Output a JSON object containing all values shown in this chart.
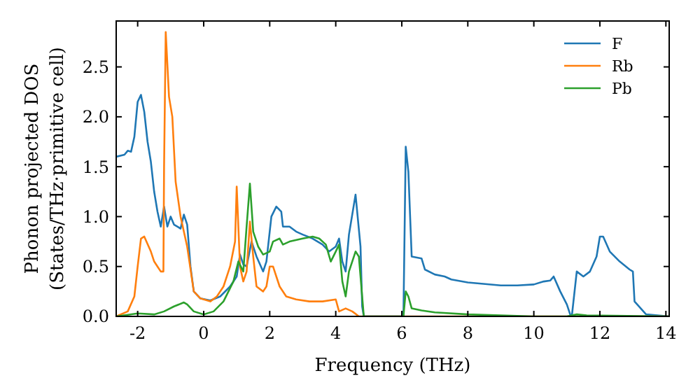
{
  "chart_data": {
    "type": "line",
    "xlabel": "Frequency (THz)",
    "ylabel": "Phonon projected DOS\n(States/THz·primitive cell)",
    "xlim": [
      -2.65,
      14.1
    ],
    "ylim": [
      0,
      2.96
    ],
    "xticks": [
      -2,
      0,
      2,
      4,
      6,
      8,
      10,
      12,
      14
    ],
    "yticks": [
      {
        "value": 0,
        "label": "0.0"
      },
      {
        "value": 0.5,
        "label": "0.5"
      },
      {
        "value": 1,
        "label": "1.0"
      },
      {
        "value": 1.5,
        "label": "1.5"
      },
      {
        "value": 2,
        "label": "2.0"
      },
      {
        "value": 2.5,
        "label": "2.5"
      }
    ],
    "grid": false,
    "legend": "top right",
    "marker": "none",
    "line_style": "solid",
    "series": [
      {
        "name": "F",
        "color": "#1f77b4",
        "x": [
          -2.65,
          -2.4,
          -2.3,
          -2.2,
          -2.1,
          -2.0,
          -1.9,
          -1.8,
          -1.7,
          -1.6,
          -1.5,
          -1.4,
          -1.3,
          -1.2,
          -1.1,
          -1.0,
          -0.9,
          -0.7,
          -0.6,
          -0.5,
          -0.4,
          -0.3,
          -0.1,
          0.2,
          0.5,
          0.8,
          1.0,
          1.1,
          1.2,
          1.3,
          1.45,
          1.6,
          1.8,
          1.9,
          2.05,
          2.2,
          2.35,
          2.4,
          2.6,
          2.8,
          3.0,
          3.3,
          3.6,
          3.8,
          4.0,
          4.1,
          4.2,
          4.3,
          4.4,
          4.6,
          4.75,
          4.8,
          4.85,
          6.05,
          6.12,
          6.2,
          6.3,
          6.6,
          6.7,
          7.0,
          7.3,
          7.5,
          8.0,
          9.0,
          9.5,
          10.0,
          10.3,
          10.5,
          10.6,
          10.8,
          11.0,
          11.1,
          11.15,
          11.3,
          11.5,
          11.7,
          11.9,
          12.0,
          12.1,
          12.3,
          12.6,
          12.9,
          13.0,
          13.05,
          13.4,
          14.1
        ],
        "values": [
          1.6,
          1.62,
          1.66,
          1.65,
          1.8,
          2.15,
          2.22,
          2.05,
          1.75,
          1.55,
          1.25,
          1.05,
          0.9,
          1.1,
          0.9,
          1.0,
          0.92,
          0.88,
          1.02,
          0.92,
          0.5,
          0.25,
          0.18,
          0.16,
          0.2,
          0.3,
          0.4,
          0.62,
          0.52,
          0.5,
          0.75,
          0.6,
          0.45,
          0.55,
          1.0,
          1.1,
          1.05,
          0.9,
          0.9,
          0.85,
          0.82,
          0.78,
          0.72,
          0.65,
          0.7,
          0.78,
          0.55,
          0.45,
          0.82,
          1.22,
          0.7,
          0.1,
          0,
          0,
          1.7,
          1.45,
          0.6,
          0.58,
          0.47,
          0.42,
          0.4,
          0.37,
          0.34,
          0.31,
          0.31,
          0.32,
          0.35,
          0.36,
          0.4,
          0.25,
          0.12,
          0.02,
          0,
          0.45,
          0.4,
          0.45,
          0.6,
          0.8,
          0.8,
          0.65,
          0.55,
          0.47,
          0.45,
          0.15,
          0.02,
          0
        ]
      },
      {
        "name": "Rb",
        "color": "#ff7f0e",
        "x": [
          -2.65,
          -2.3,
          -2.1,
          -2.0,
          -1.9,
          -1.8,
          -1.6,
          -1.5,
          -1.4,
          -1.3,
          -1.22,
          -1.2,
          -1.15,
          -1.05,
          -0.95,
          -0.85,
          -0.7,
          -0.5,
          -0.3,
          -0.1,
          0.2,
          0.4,
          0.6,
          0.8,
          0.95,
          1.0,
          1.1,
          1.2,
          1.3,
          1.4,
          1.5,
          1.6,
          1.8,
          1.9,
          2.0,
          2.1,
          2.2,
          2.3,
          2.5,
          2.8,
          3.2,
          3.6,
          4.0,
          4.1,
          4.3,
          4.5,
          4.7,
          14.1
        ],
        "values": [
          0,
          0.05,
          0.2,
          0.5,
          0.78,
          0.8,
          0.65,
          0.55,
          0.5,
          0.45,
          0.45,
          1.5,
          2.85,
          2.2,
          2.0,
          1.35,
          1.0,
          0.7,
          0.25,
          0.18,
          0.15,
          0.2,
          0.3,
          0.5,
          0.75,
          1.3,
          0.5,
          0.35,
          0.45,
          0.95,
          0.6,
          0.3,
          0.25,
          0.3,
          0.5,
          0.5,
          0.4,
          0.3,
          0.2,
          0.17,
          0.15,
          0.15,
          0.17,
          0.05,
          0.08,
          0.05,
          0,
          0
        ]
      },
      {
        "name": "Pb",
        "color": "#2ca02c",
        "x": [
          -2.65,
          -2.0,
          -1.5,
          -1.2,
          -0.9,
          -0.6,
          -0.5,
          -0.3,
          0,
          0.3,
          0.6,
          0.9,
          1.05,
          1.2,
          1.3,
          1.4,
          1.5,
          1.65,
          1.8,
          2.0,
          2.1,
          2.3,
          2.4,
          2.6,
          3.0,
          3.3,
          3.5,
          3.7,
          3.85,
          4.0,
          4.1,
          4.2,
          4.3,
          4.4,
          4.6,
          4.7,
          4.8,
          4.85,
          6.05,
          6.12,
          6.2,
          6.3,
          6.6,
          7.0,
          8.0,
          9.0,
          10.0,
          11.0,
          11.3,
          11.6,
          14.1
        ],
        "values": [
          0,
          0.03,
          0.02,
          0.05,
          0.1,
          0.14,
          0.12,
          0.05,
          0.02,
          0.05,
          0.15,
          0.35,
          0.55,
          0.45,
          0.9,
          1.33,
          0.85,
          0.7,
          0.62,
          0.65,
          0.75,
          0.78,
          0.72,
          0.75,
          0.78,
          0.8,
          0.78,
          0.72,
          0.55,
          0.65,
          0.72,
          0.35,
          0.2,
          0.45,
          0.65,
          0.6,
          0.2,
          0,
          0,
          0.25,
          0.2,
          0.08,
          0.06,
          0.04,
          0.02,
          0.01,
          0,
          0,
          0.02,
          0.01,
          0
        ]
      }
    ]
  }
}
